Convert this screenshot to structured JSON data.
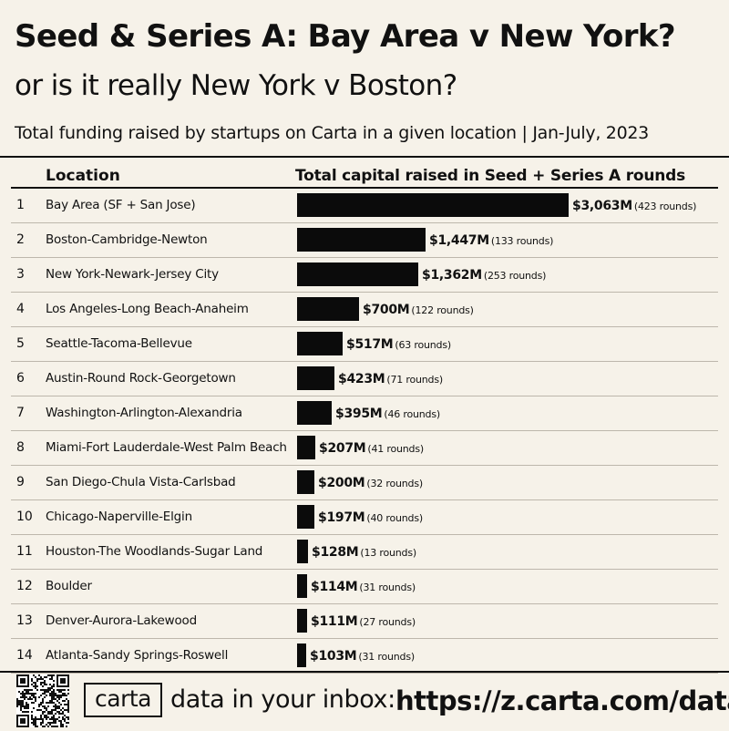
{
  "header": {
    "title": "Seed & Series A: Bay Area v New York?",
    "subtitle": "or is it really New York v Boston?",
    "caption": "Total funding raised by startups on Carta in a given location | Jan-July, 2023"
  },
  "table": {
    "col_location": "Location",
    "col_capital": "Total capital raised in Seed + Series A rounds"
  },
  "chart_data": {
    "type": "bar",
    "orientation": "horizontal",
    "title": "Seed & Series A: Bay Area v New York?",
    "subtitle": "or is it really New York v Boston?",
    "xlabel": "Total capital raised in Seed + Series A rounds",
    "ylabel": "Location",
    "unit": "$M",
    "grid": false,
    "legend": "none",
    "bar_color": "#0b0b0b",
    "rows": [
      {
        "rank": "1",
        "location": "Bay Area (SF + San Jose)",
        "value": 3063,
        "value_label": "$3,063M",
        "rounds_label": "(423 rounds)"
      },
      {
        "rank": "2",
        "location": "Boston-Cambridge-Newton",
        "value": 1447,
        "value_label": "$1,447M",
        "rounds_label": "(133 rounds)"
      },
      {
        "rank": "3",
        "location": "New York-Newark-Jersey City",
        "value": 1362,
        "value_label": "$1,362M",
        "rounds_label": "(253 rounds)"
      },
      {
        "rank": "4",
        "location": "Los Angeles-Long Beach-Anaheim",
        "value": 700,
        "value_label": "$700M",
        "rounds_label": "(122 rounds)"
      },
      {
        "rank": "5",
        "location": "Seattle-Tacoma-Bellevue",
        "value": 517,
        "value_label": "$517M",
        "rounds_label": "(63 rounds)"
      },
      {
        "rank": "6",
        "location": "Austin-Round Rock-Georgetown",
        "value": 423,
        "value_label": "$423M",
        "rounds_label": "(71 rounds)"
      },
      {
        "rank": "7",
        "location": "Washington-Arlington-Alexandria",
        "value": 395,
        "value_label": "$395M",
        "rounds_label": "(46 rounds)"
      },
      {
        "rank": "8",
        "location": "Miami-Fort Lauderdale-West Palm Beach",
        "value": 207,
        "value_label": "$207M",
        "rounds_label": "(41 rounds)"
      },
      {
        "rank": "9",
        "location": "San Diego-Chula Vista-Carlsbad",
        "value": 200,
        "value_label": "$200M",
        "rounds_label": "(32 rounds)"
      },
      {
        "rank": "10",
        "location": "Chicago-Naperville-Elgin",
        "value": 197,
        "value_label": "$197M",
        "rounds_label": "(40 rounds)"
      },
      {
        "rank": "11",
        "location": "Houston-The Woodlands-Sugar Land",
        "value": 128,
        "value_label": "$128M",
        "rounds_label": "(13 rounds)"
      },
      {
        "rank": "12",
        "location": "Boulder",
        "value": 114,
        "value_label": "$114M",
        "rounds_label": "(31 rounds)"
      },
      {
        "rank": "13",
        "location": "Denver-Aurora-Lakewood",
        "value": 111,
        "value_label": "$111M",
        "rounds_label": "(27 rounds)"
      },
      {
        "rank": "14",
        "location": "Atlanta-Sandy Springs-Roswell",
        "value": 103,
        "value_label": "$103M",
        "rounds_label": "(31 rounds)"
      }
    ]
  },
  "footer": {
    "logo_text": "carta",
    "cta_text": "data in your inbox:",
    "url": "https://z.carta.com/data",
    "qr_icon": "qr-code-icon"
  },
  "colors": {
    "background": "#f6f2e9",
    "text": "#111111",
    "bar": "#0b0b0b",
    "row_divider": "#bdb7ac"
  }
}
